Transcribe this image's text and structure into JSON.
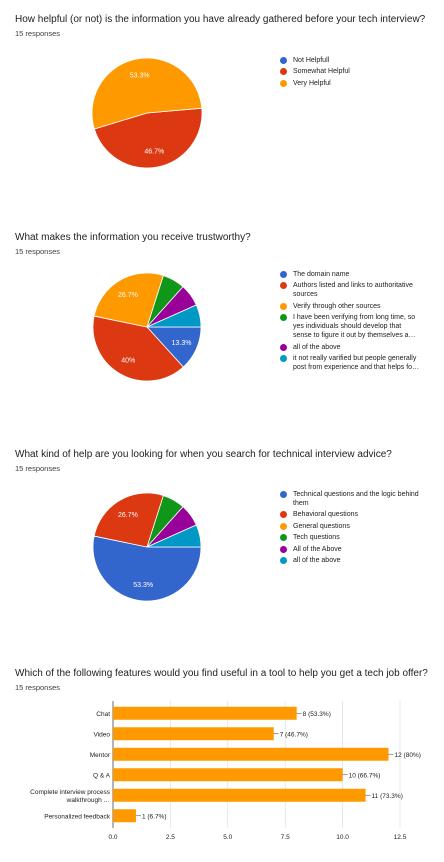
{
  "chart_data": [
    {
      "type": "pie",
      "title": "How helpful (or not) is the information you have already gathered before your tech interview?",
      "responses": "15 responses",
      "categories": [
        "Not Helpfull",
        "Somewhat Helpful",
        "Very Helpful"
      ],
      "values": [
        0,
        46.7,
        53.3
      ],
      "labels": [
        "",
        "46.7%",
        "53.3%"
      ],
      "colors": [
        "#3366cc",
        "#dc3912",
        "#ff9900"
      ]
    },
    {
      "type": "pie",
      "title": "What makes the information you receive trustworthy?",
      "responses": "15 responses",
      "categories": [
        "The domain name",
        "Authors listed and links to authoritative sources",
        "Verify through other sources",
        "I have been verifying from long time, so yes individuals should develop that sense to figure it out by themselves a…",
        "all of the above",
        "it not really varified but people generally post from experience and that helps fo…"
      ],
      "legend_lines": [
        [
          "The domain name"
        ],
        [
          "Authors listed and links to authoritative",
          "sources"
        ],
        [
          "Verify through other sources"
        ],
        [
          "I have been verifying from long time, so",
          "yes individuals should develop that",
          "sense to figure it out by themselves a…"
        ],
        [
          "all of the above"
        ],
        [
          "it not really varified but people generally",
          "post from experience and that helps fo…"
        ]
      ],
      "values": [
        13.3,
        40,
        26.7,
        6.7,
        6.7,
        6.7
      ],
      "labels": [
        "13.3%",
        "40%",
        "26.7%",
        "",
        "",
        ""
      ],
      "colors": [
        "#3366cc",
        "#dc3912",
        "#ff9900",
        "#109618",
        "#990099",
        "#0099c6"
      ]
    },
    {
      "type": "pie",
      "title": "What kind of help are you looking for when you search for technical interview advice?",
      "responses": "15 responses",
      "categories": [
        "Technical questions and the logic behind them",
        "Behavioral questions",
        "General questions",
        "Tech questions",
        "All of the Above",
        "all of the above"
      ],
      "legend_lines": [
        [
          "Technical questions and the logic behind",
          "them"
        ],
        [
          "Behavioral questions"
        ],
        [
          "General questions"
        ],
        [
          "Tech questions"
        ],
        [
          "All of the Above"
        ],
        [
          "all of the above"
        ]
      ],
      "values": [
        53.3,
        26.7,
        0,
        6.7,
        6.7,
        6.7
      ],
      "labels": [
        "53.3%",
        "26.7%",
        "",
        "",
        "",
        ""
      ],
      "colors": [
        "#3366cc",
        "#dc3912",
        "#ff9900",
        "#109618",
        "#990099",
        "#0099c6"
      ]
    },
    {
      "type": "bar",
      "orientation": "horizontal",
      "title": "Which of the following features would you find useful in a tool to help you get a tech job offer?",
      "responses": "15 responses",
      "categories": [
        [
          "Chat"
        ],
        [
          "Video"
        ],
        [
          "Mentor"
        ],
        [
          "Q & A"
        ],
        [
          "Complete interview process",
          "walkthrough …"
        ],
        [
          "Personalized feedback"
        ]
      ],
      "values": [
        8,
        7,
        12,
        10,
        11,
        1
      ],
      "value_labels": [
        "8 (53.3%)",
        "7 (46.7%)",
        "12 (80%)",
        "10 (66.7%)",
        "11 (73.3%)",
        "1 (6.7%)"
      ],
      "xlim": [
        0,
        12.5
      ],
      "xticks": [
        "0.0",
        "2.5",
        "5.0",
        "7.5",
        "10.0",
        "12.5"
      ],
      "bar_color": "#ff9900"
    }
  ],
  "legend_titles": {
    "chart1": [
      "Not Helpfull",
      "Somewhat Helpful",
      "Very Helpful"
    ]
  }
}
